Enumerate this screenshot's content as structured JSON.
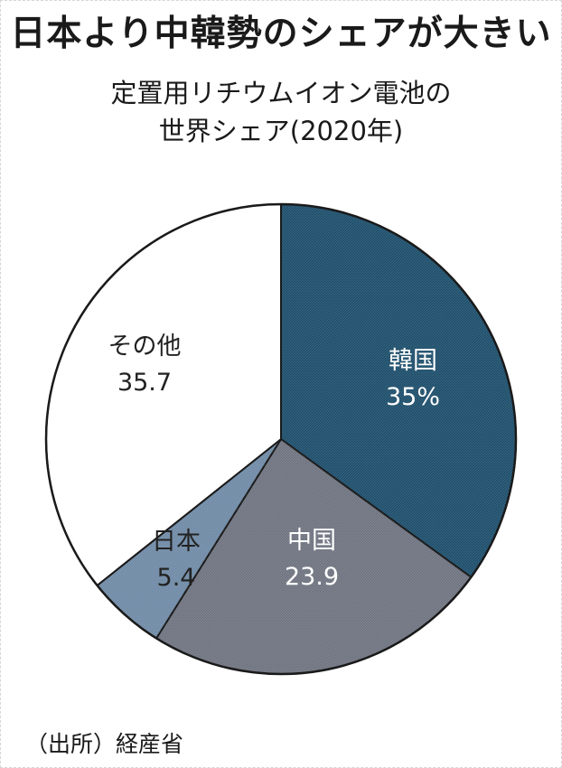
{
  "header": {
    "title": "日本より中韓勢のシェアが大きい",
    "subtitle_line1": "定置用リチウムイオン電池の",
    "subtitle_line2": "世界シェア(2020年)"
  },
  "footer": {
    "source": "（出所）経産省"
  },
  "chart_data": {
    "type": "pie",
    "title": "日本より中韓勢のシェアが大きい",
    "subtitle": "定置用リチウムイオン電池の世界シェア(2020年)",
    "unit": "%",
    "start": "12 o'clock",
    "direction": "clockwise",
    "slices": [
      {
        "label": "韓国",
        "value": 35,
        "value_text": "35%",
        "color": "#1d4e6b",
        "label_color": "#ffffff"
      },
      {
        "label": "中国",
        "value": 23.9,
        "value_text": "23.9",
        "color": "#6e7380",
        "label_color": "#ffffff"
      },
      {
        "label": "日本",
        "value": 5.4,
        "value_text": "5.4",
        "color": "#6f8aa6",
        "label_color": "#222222"
      },
      {
        "label": "その他",
        "value": 35.7,
        "value_text": "35.7",
        "color": "#ffffff",
        "label_color": "#222222"
      }
    ],
    "source": "（出所）経産省"
  }
}
